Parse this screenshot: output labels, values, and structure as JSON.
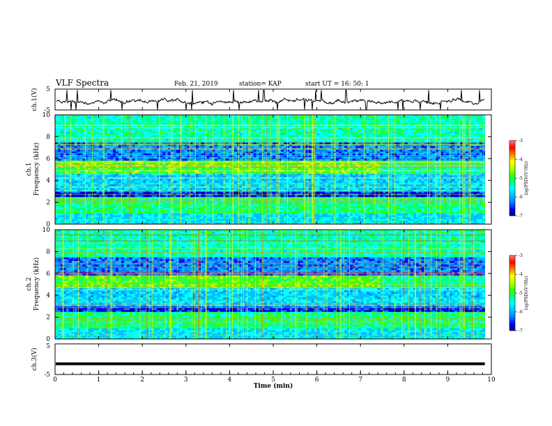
{
  "header": {
    "title": "VLF Spectra",
    "date": "Feb. 21, 2019",
    "station": "station= KAP",
    "start_time": "start  UT =   16: 50: 1"
  },
  "colors": {
    "spectrogram_palette": [
      "#000080",
      "#0000ff",
      "#0080ff",
      "#00c0ff",
      "#00ffff",
      "#00ff80",
      "#40ff00",
      "#c0ff00",
      "#ffff00",
      "#ff8000",
      "#ff0000",
      "#ff8080",
      "#ffffff"
    ],
    "waveform": "#000000"
  },
  "chart_data": [
    {
      "type": "line",
      "panel": "ch1-waveform",
      "ylabel": "ch.1(V)",
      "ylim": [
        -5,
        5
      ],
      "yticks": [
        "5",
        "-5"
      ],
      "xlim": [
        0,
        9.85
      ],
      "description_series": "noisy signal fluctuating around -1 V with spikes"
    },
    {
      "type": "heatmap",
      "panel": "ch1-spectrogram",
      "ylabel": "ch.1\nFrequency (kHz)",
      "ylabel_lines": [
        "ch.1",
        "Frequency (kHz)"
      ],
      "ylim": [
        0,
        10
      ],
      "yticks": [
        "0",
        "2",
        "4",
        "6",
        "8",
        "10"
      ],
      "colorbar": {
        "label": "log(PSD)(V²/Hz)",
        "range": [
          -7,
          -3
        ],
        "ticks": [
          "-3",
          "-4",
          "-5",
          "-6",
          "-7"
        ]
      }
    },
    {
      "type": "heatmap",
      "panel": "ch2-spectrogram",
      "ylabel_lines": [
        "ch.2",
        "Frequency (kHz)"
      ],
      "ylim": [
        0,
        10
      ],
      "yticks": [
        "0",
        "2",
        "4",
        "6",
        "8",
        "10"
      ],
      "colorbar": {
        "label": "log(PSD)(V²/Hz)",
        "range": [
          -7,
          -3
        ],
        "ticks": [
          "-3",
          "-4",
          "-5",
          "-6",
          "-7"
        ]
      }
    },
    {
      "type": "line",
      "panel": "ch3-waveform",
      "ylabel": "ch.3(V)",
      "ylim": [
        -5,
        5
      ],
      "yticks": [
        "5",
        "-5"
      ],
      "xlim": [
        0,
        9.85
      ],
      "constant_value": -1.5
    }
  ],
  "xaxis": {
    "label": "Time (min)",
    "range": [
      0,
      10
    ],
    "ticks": [
      "0",
      "1",
      "2",
      "3",
      "4",
      "5",
      "6",
      "7",
      "8",
      "9",
      "10"
    ]
  },
  "colorbar_label": "log(PSD)(V²/Hz)"
}
